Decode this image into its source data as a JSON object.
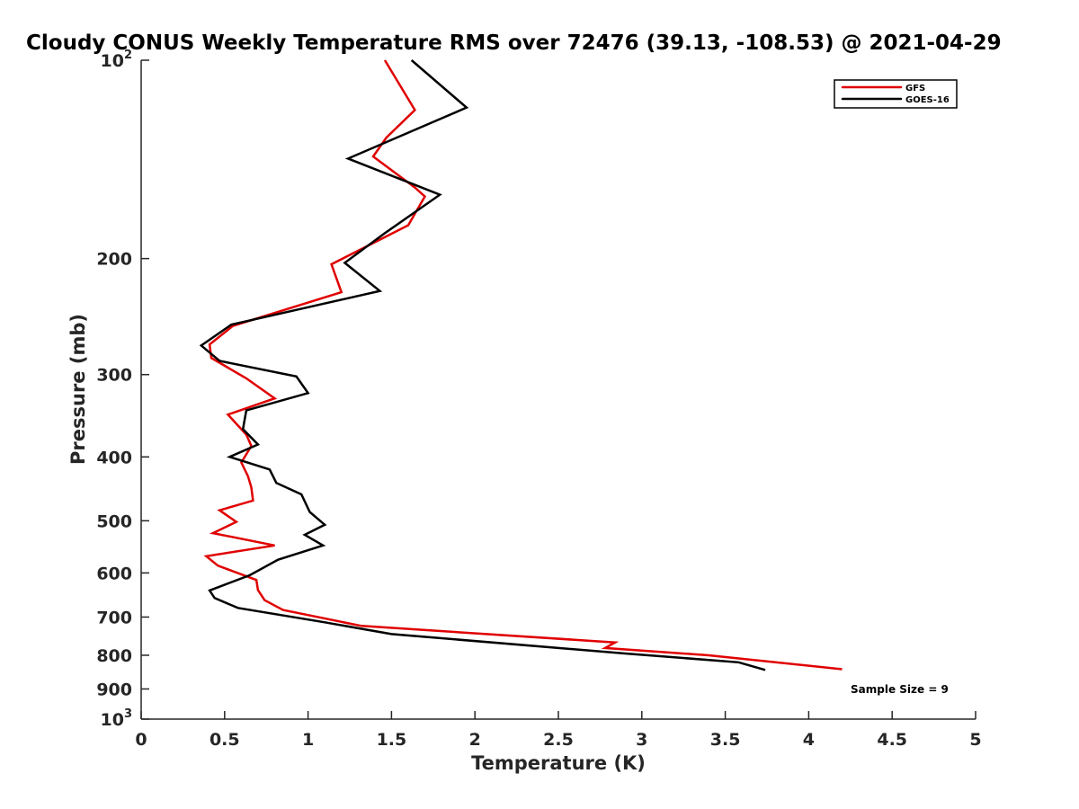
{
  "chart_data": {
    "type": "line",
    "title": "Cloudy CONUS Weekly Temperature RMS over 72476 (39.13, -108.53) @ 2021-04-29",
    "xlabel": "Temperature (K)",
    "ylabel": "Pressure (mb)",
    "xlim": [
      0,
      5
    ],
    "ylim": [
      100,
      1000
    ],
    "y_scale": "log",
    "y_reversed": true,
    "grid": false,
    "legend_position": "top-right",
    "x_ticks": [
      0,
      0.5,
      1,
      1.5,
      2,
      2.5,
      3,
      3.5,
      4,
      4.5,
      5
    ],
    "x_tick_labels": [
      "0",
      "0.5",
      "1",
      "1.5",
      "2",
      "2.5",
      "3",
      "3.5",
      "4",
      "4.5",
      "5"
    ],
    "y_ticks": [
      100,
      200,
      300,
      400,
      500,
      600,
      700,
      800,
      900,
      1000
    ],
    "y_tick_labels": [
      {
        "base": "10",
        "exp": "2"
      },
      {
        "base": "200",
        "exp": ""
      },
      {
        "base": "300",
        "exp": ""
      },
      {
        "base": "400",
        "exp": ""
      },
      {
        "base": "500",
        "exp": ""
      },
      {
        "base": "600",
        "exp": ""
      },
      {
        "base": "700",
        "exp": ""
      },
      {
        "base": "800",
        "exp": ""
      },
      {
        "base": "900",
        "exp": ""
      },
      {
        "base": "10",
        "exp": "3"
      }
    ],
    "annotation": "Sample Size = 9",
    "series": [
      {
        "name": "GFS",
        "color": "#e00000",
        "points": [
          [
            1.46,
            100
          ],
          [
            1.64,
            119
          ],
          [
            1.47,
            131
          ],
          [
            1.39,
            140
          ],
          [
            1.64,
            156
          ],
          [
            1.7,
            161
          ],
          [
            1.6,
            178
          ],
          [
            1.14,
            204
          ],
          [
            1.2,
            225
          ],
          [
            0.55,
            253
          ],
          [
            0.41,
            270
          ],
          [
            0.42,
            283
          ],
          [
            0.63,
            304
          ],
          [
            0.8,
            326
          ],
          [
            0.52,
            345
          ],
          [
            0.63,
            370
          ],
          [
            0.66,
            385
          ],
          [
            0.6,
            408
          ],
          [
            0.64,
            428
          ],
          [
            0.66,
            445
          ],
          [
            0.67,
            466
          ],
          [
            0.47,
            482
          ],
          [
            0.57,
            502
          ],
          [
            0.43,
            522
          ],
          [
            0.8,
            545
          ],
          [
            0.39,
            566
          ],
          [
            0.46,
            585
          ],
          [
            0.69,
            615
          ],
          [
            0.7,
            637
          ],
          [
            0.74,
            660
          ],
          [
            0.85,
            683
          ],
          [
            1.32,
            722
          ],
          [
            2.84,
            765
          ],
          [
            2.78,
            780
          ],
          [
            3.4,
            800
          ],
          [
            4.2,
            840
          ]
        ]
      },
      {
        "name": "GOES-16",
        "color": "#000000",
        "points": [
          [
            1.62,
            100
          ],
          [
            1.95,
            118
          ],
          [
            1.24,
            141
          ],
          [
            1.79,
            160
          ],
          [
            1.46,
            183
          ],
          [
            1.22,
            203
          ],
          [
            1.43,
            224
          ],
          [
            0.54,
            252
          ],
          [
            0.36,
            271
          ],
          [
            0.47,
            286
          ],
          [
            0.93,
            302
          ],
          [
            1.0,
            320
          ],
          [
            0.63,
            340
          ],
          [
            0.61,
            363
          ],
          [
            0.7,
            383
          ],
          [
            0.53,
            400
          ],
          [
            0.77,
            418
          ],
          [
            0.81,
            438
          ],
          [
            0.96,
            456
          ],
          [
            1.01,
            485
          ],
          [
            1.1,
            507
          ],
          [
            0.98,
            525
          ],
          [
            1.09,
            545
          ],
          [
            0.82,
            573
          ],
          [
            0.65,
            605
          ],
          [
            0.41,
            638
          ],
          [
            0.44,
            655
          ],
          [
            0.58,
            678
          ],
          [
            1.1,
            713
          ],
          [
            1.5,
            743
          ],
          [
            2.9,
            795
          ],
          [
            3.58,
            820
          ],
          [
            3.74,
            842
          ]
        ]
      }
    ]
  }
}
